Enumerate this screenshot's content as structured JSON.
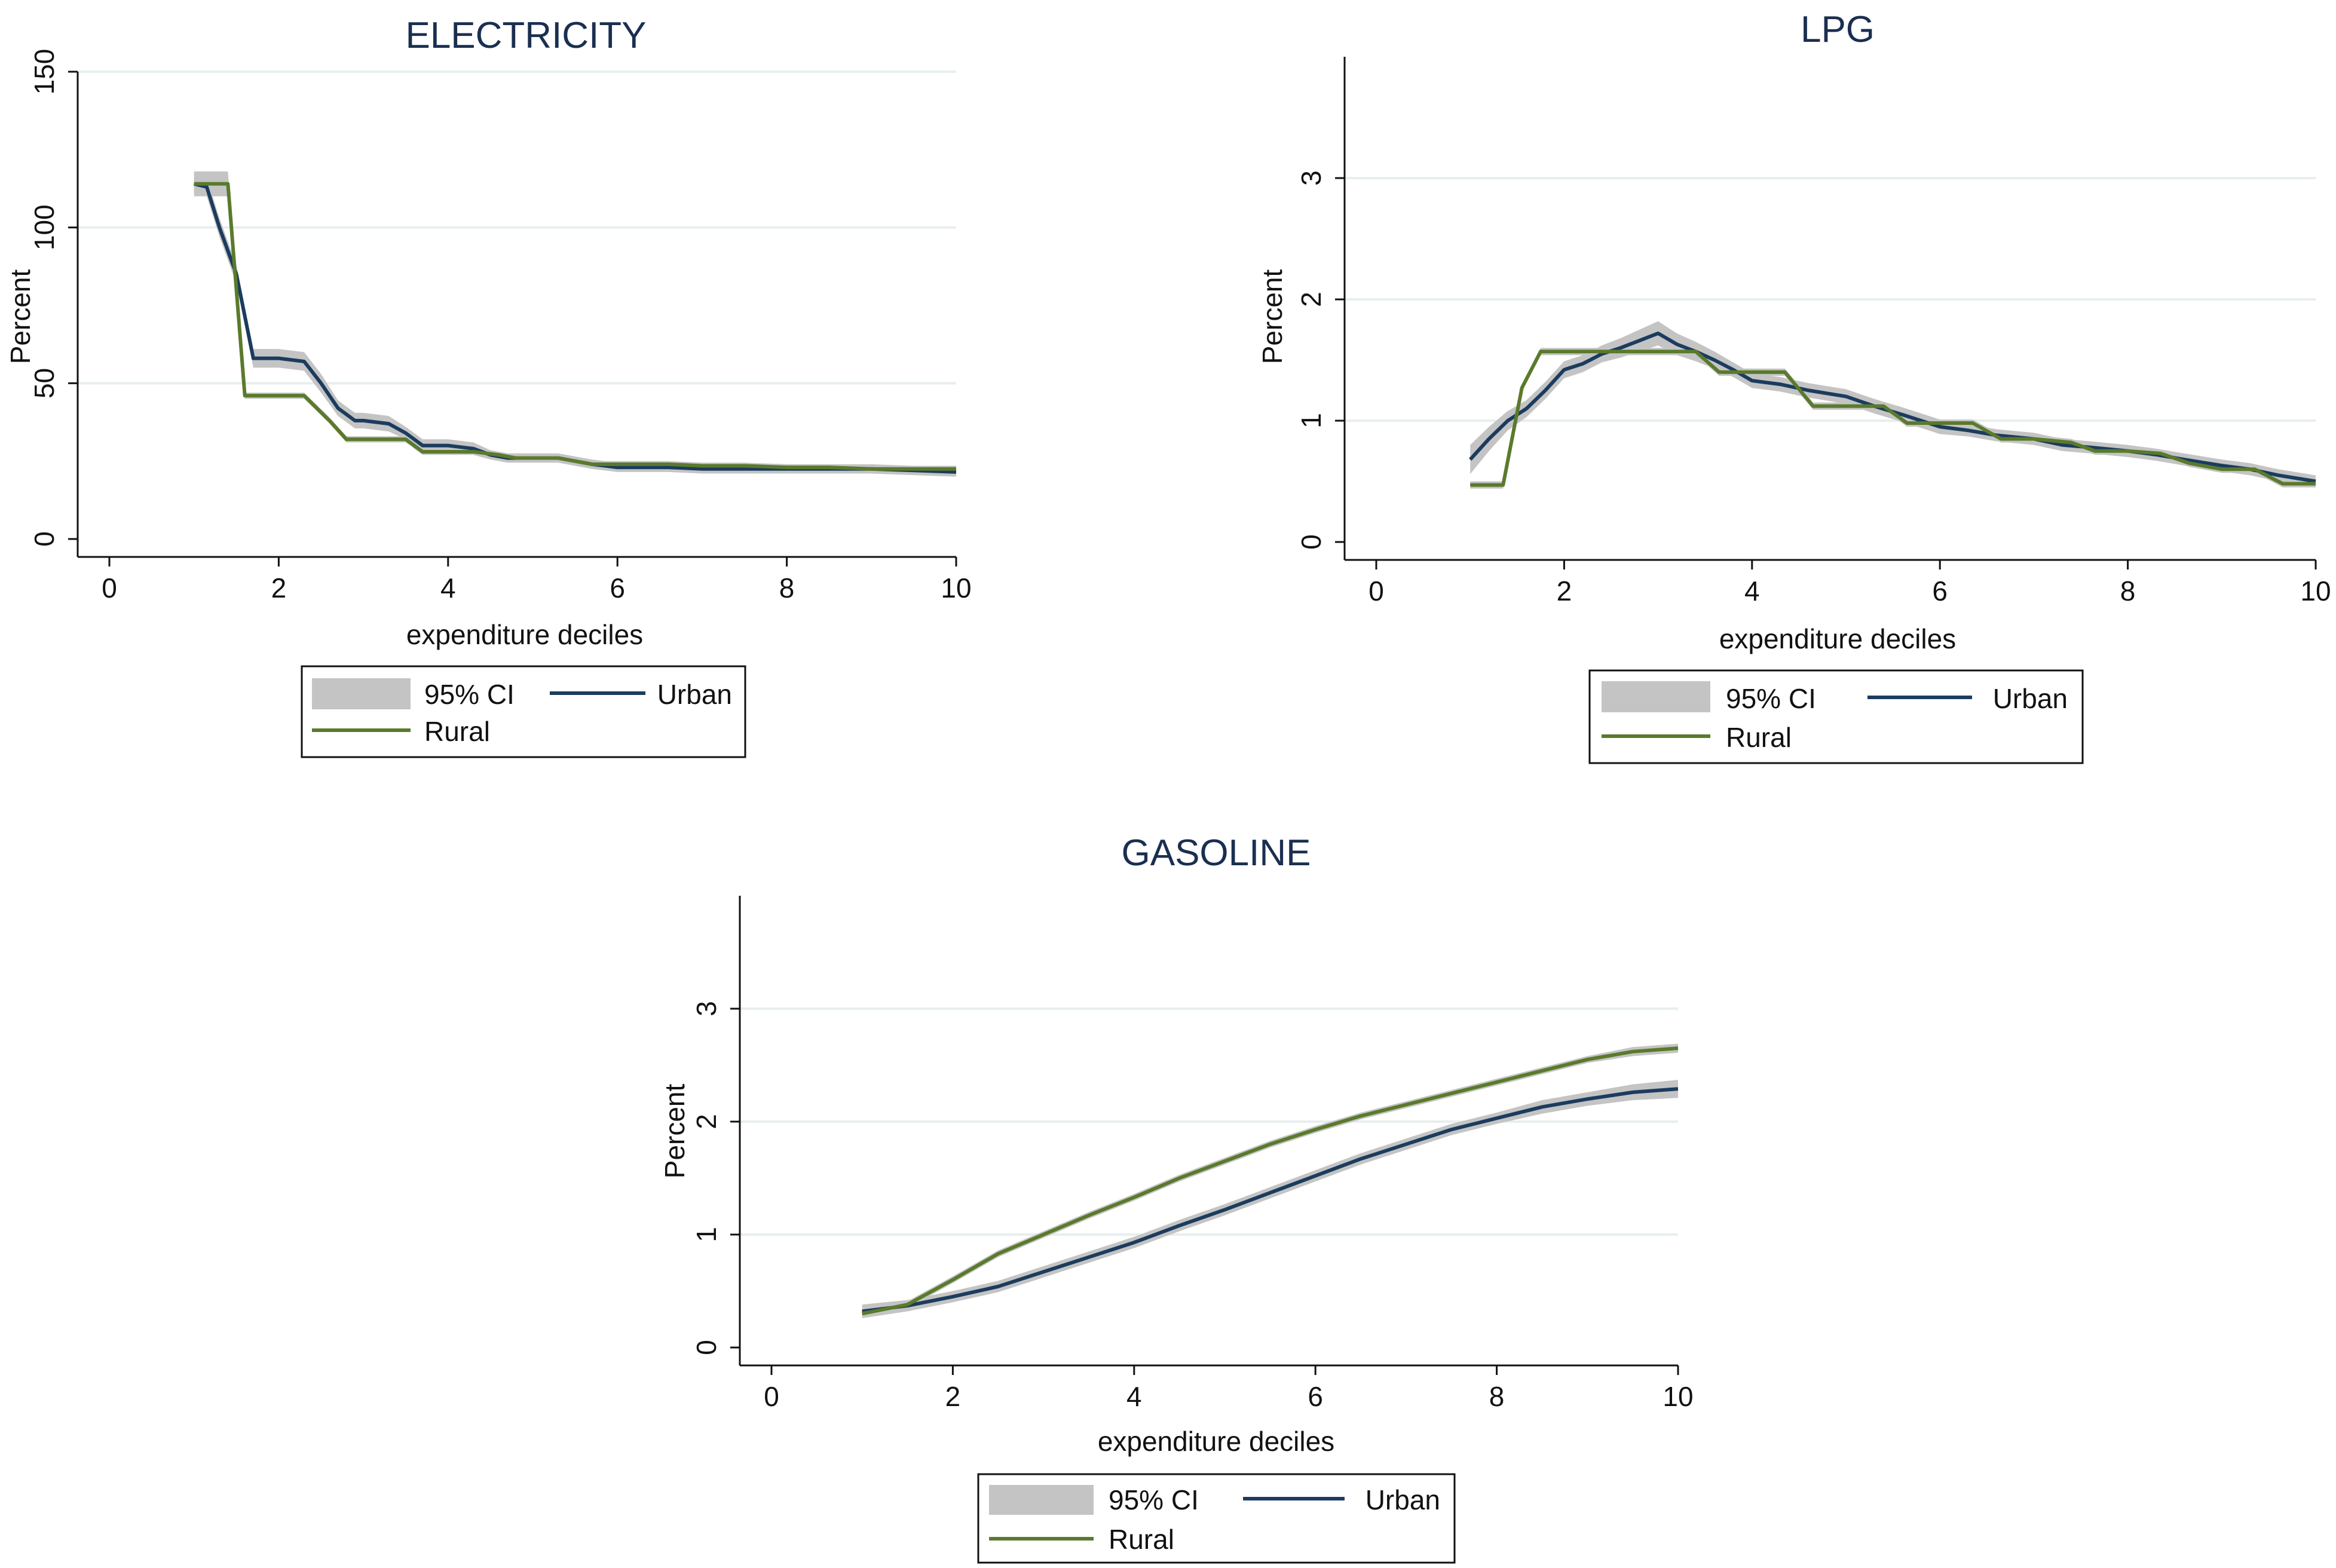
{
  "legend": {
    "ci_label": "95% CI",
    "urban_label": "Urban",
    "rural_label": "Rural"
  },
  "colors": {
    "ci": "#c4c4c4",
    "urban": "#1b3c5e",
    "rural": "#5a7a2c",
    "title": "#1a2f50",
    "grid": "#e8eeef"
  },
  "chart_data": [
    {
      "type": "line",
      "title": "ELECTRICITY",
      "xlabel": "expenditure deciles",
      "ylabel": "Percent",
      "xlim": [
        0,
        10
      ],
      "ylim": [
        0,
        150
      ],
      "xticks": [
        0,
        2,
        4,
        6,
        8,
        10
      ],
      "yticks": [
        0,
        50,
        100,
        150
      ],
      "grid": true,
      "legend_position": "bottom",
      "series": [
        {
          "name": "Urban",
          "x": [
            1,
            1.15,
            1.3,
            1.5,
            1.7,
            2.0,
            2.3,
            2.5,
            2.7,
            2.9,
            3.0,
            3.3,
            3.5,
            3.7,
            4.0,
            4.3,
            4.5,
            4.7,
            5.0,
            5.3,
            5.5,
            5.7,
            6.0,
            6.3,
            6.6,
            7.0,
            7.5,
            8.0,
            8.5,
            9.0,
            9.5,
            10.0
          ],
          "y": [
            114,
            113,
            100,
            85,
            58,
            58,
            57,
            50,
            42,
            38,
            38,
            37,
            34,
            30,
            30,
            29,
            27,
            26,
            26,
            26,
            25,
            24,
            23,
            23,
            23,
            22.5,
            22.5,
            22.5,
            22.5,
            22.5,
            22,
            21.5
          ],
          "ci_width": [
            3,
            3,
            3,
            3,
            3,
            3,
            3,
            3,
            2.5,
            2.5,
            2.5,
            2.5,
            2,
            2,
            2,
            2,
            1.5,
            1.5,
            1.5,
            1.5,
            1.5,
            1.5,
            1.5,
            1.5,
            1.5,
            1.5,
            1.5,
            1.5,
            1.5,
            1.5,
            1.5,
            1.5
          ]
        },
        {
          "name": "Rural",
          "x": [
            1,
            1.4,
            1.6,
            1.7,
            2.0,
            2.3,
            2.6,
            2.8,
            3.0,
            3.3,
            3.5,
            3.7,
            4.0,
            4.3,
            4.6,
            4.8,
            5.0,
            5.3,
            5.5,
            5.7,
            6.0,
            6.3,
            6.6,
            7.0,
            7.5,
            8.0,
            8.5,
            9.0,
            9.5,
            10.0
          ],
          "y": [
            114,
            114,
            46,
            46,
            46,
            46,
            38,
            32,
            32,
            32,
            32,
            28,
            28,
            28,
            27,
            26,
            26,
            26,
            25,
            24,
            24,
            24,
            24,
            23.5,
            23.5,
            23,
            23,
            22.5,
            22.5,
            22.5
          ],
          "ci_width": [
            4,
            4,
            1,
            1,
            1,
            1,
            1,
            1,
            1,
            1,
            1,
            1,
            1,
            1,
            1,
            1,
            1,
            1,
            1,
            1,
            1,
            1,
            1,
            1,
            1,
            1,
            1,
            1,
            1,
            1
          ]
        }
      ]
    },
    {
      "type": "line",
      "title": "LPG",
      "xlabel": "expenditure deciles",
      "ylabel": "Percent",
      "xlim": [
        0,
        10
      ],
      "ylim": [
        0,
        4
      ],
      "xticks": [
        0,
        2,
        4,
        6,
        8,
        10
      ],
      "yticks": [
        0,
        1,
        2,
        3
      ],
      "grid": true,
      "legend_position": "bottom",
      "series": [
        {
          "name": "Urban",
          "x": [
            1,
            1.2,
            1.4,
            1.6,
            1.8,
            2.0,
            2.2,
            2.4,
            2.6,
            2.8,
            3.0,
            3.2,
            3.4,
            3.6,
            3.8,
            4.0,
            4.3,
            4.6,
            5.0,
            5.3,
            5.6,
            6.0,
            6.3,
            6.6,
            7.0,
            7.3,
            7.6,
            8.0,
            8.3,
            8.6,
            9.0,
            9.3,
            9.6,
            10.0
          ],
          "y": [
            0.68,
            0.85,
            1.0,
            1.1,
            1.25,
            1.42,
            1.47,
            1.55,
            1.6,
            1.66,
            1.72,
            1.63,
            1.57,
            1.5,
            1.42,
            1.33,
            1.3,
            1.25,
            1.2,
            1.12,
            1.05,
            0.95,
            0.92,
            0.88,
            0.85,
            0.8,
            0.78,
            0.75,
            0.72,
            0.68,
            0.63,
            0.6,
            0.55,
            0.5
          ],
          "ci_width": [
            0.12,
            0.1,
            0.08,
            0.07,
            0.07,
            0.07,
            0.07,
            0.07,
            0.08,
            0.09,
            0.1,
            0.09,
            0.08,
            0.07,
            0.06,
            0.06,
            0.06,
            0.06,
            0.06,
            0.06,
            0.06,
            0.06,
            0.05,
            0.05,
            0.05,
            0.05,
            0.05,
            0.05,
            0.05,
            0.05,
            0.05,
            0.05,
            0.05,
            0.05
          ]
        },
        {
          "name": "Rural",
          "x": [
            1,
            1.35,
            1.55,
            1.75,
            2.0,
            2.5,
            3.0,
            3.4,
            3.65,
            4.0,
            4.35,
            4.65,
            5.0,
            5.4,
            5.65,
            6.0,
            6.35,
            6.65,
            7.0,
            7.4,
            7.65,
            8.0,
            8.35,
            8.65,
            9.0,
            9.35,
            9.55,
            9.65,
            10.0
          ],
          "y": [
            0.47,
            0.47,
            1.27,
            1.57,
            1.57,
            1.57,
            1.57,
            1.57,
            1.4,
            1.4,
            1.4,
            1.12,
            1.12,
            1.12,
            0.98,
            0.98,
            0.98,
            0.85,
            0.85,
            0.82,
            0.75,
            0.75,
            0.73,
            0.65,
            0.6,
            0.6,
            0.52,
            0.48,
            0.48
          ],
          "ci_width": [
            0.03,
            0.03,
            0.03,
            0.03,
            0.03,
            0.03,
            0.03,
            0.03,
            0.03,
            0.03,
            0.03,
            0.03,
            0.03,
            0.03,
            0.03,
            0.03,
            0.03,
            0.03,
            0.03,
            0.03,
            0.03,
            0.03,
            0.03,
            0.03,
            0.03,
            0.03,
            0.03,
            0.03,
            0.03
          ]
        }
      ]
    },
    {
      "type": "line",
      "title": "GASOLINE",
      "xlabel": "expenditure deciles",
      "ylabel": "Percent",
      "xlim": [
        0,
        10
      ],
      "ylim": [
        0,
        4
      ],
      "xticks": [
        0,
        2,
        4,
        6,
        8,
        10
      ],
      "yticks": [
        0,
        1,
        2,
        3
      ],
      "grid": true,
      "legend_position": "bottom",
      "series": [
        {
          "name": "Urban",
          "x": [
            1,
            1.5,
            2.0,
            2.5,
            3.0,
            3.5,
            4.0,
            4.5,
            5.0,
            5.5,
            6.0,
            6.5,
            7.0,
            7.5,
            8.0,
            8.5,
            9.0,
            9.5,
            10.0
          ],
          "y": [
            0.32,
            0.37,
            0.45,
            0.54,
            0.67,
            0.8,
            0.93,
            1.08,
            1.22,
            1.37,
            1.52,
            1.67,
            1.8,
            1.93,
            2.03,
            2.13,
            2.2,
            2.26,
            2.29
          ],
          "ci_width": [
            0.06,
            0.05,
            0.05,
            0.05,
            0.05,
            0.05,
            0.05,
            0.05,
            0.05,
            0.05,
            0.05,
            0.05,
            0.05,
            0.05,
            0.05,
            0.06,
            0.06,
            0.07,
            0.08
          ]
        },
        {
          "name": "Rural",
          "x": [
            1,
            1.5,
            2.0,
            2.5,
            3.0,
            3.5,
            4.0,
            4.5,
            5.0,
            5.5,
            6.0,
            6.5,
            7.0,
            7.5,
            8.0,
            8.5,
            9.0,
            9.5,
            10.0
          ],
          "y": [
            0.3,
            0.38,
            0.6,
            0.83,
            1.0,
            1.17,
            1.33,
            1.5,
            1.65,
            1.8,
            1.93,
            2.05,
            2.15,
            2.25,
            2.35,
            2.45,
            2.55,
            2.62,
            2.65
          ],
          "ci_width": [
            0.03,
            0.03,
            0.03,
            0.03,
            0.03,
            0.03,
            0.03,
            0.03,
            0.03,
            0.03,
            0.03,
            0.03,
            0.03,
            0.03,
            0.03,
            0.03,
            0.03,
            0.04,
            0.04
          ]
        }
      ]
    }
  ]
}
